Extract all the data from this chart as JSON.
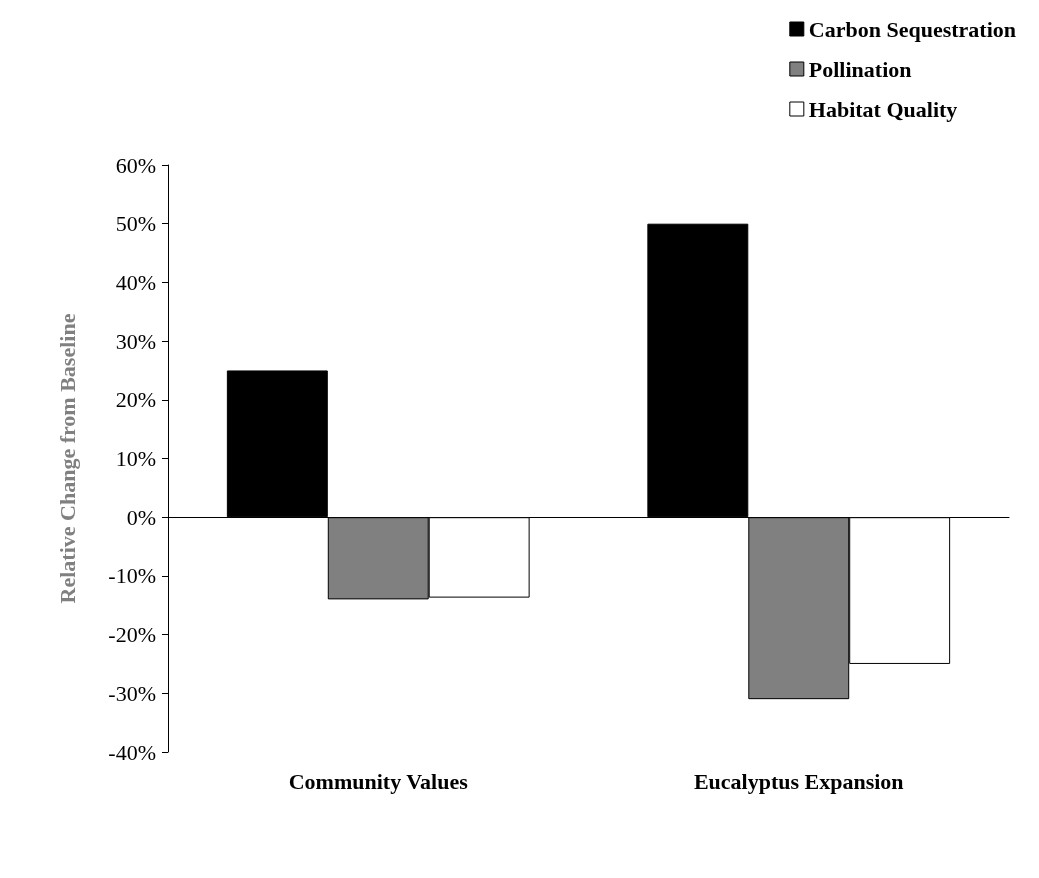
{
  "chart_data": {
    "type": "bar",
    "ylabel": "Relative Change from Baseline",
    "categories": [
      "Community Values",
      "Eucalyptus Expansion"
    ],
    "series": [
      {
        "name": "Carbon Sequestration",
        "color": "#000000",
        "values": [
          25,
          50
        ]
      },
      {
        "name": "Pollination",
        "color": "#808080",
        "values": [
          -14,
          -31
        ]
      },
      {
        "name": "Habitat Quality",
        "color": "#ffffff",
        "values": [
          -13.7,
          -25
        ]
      }
    ],
    "ylim": [
      -40,
      60
    ],
    "yticks": [
      {
        "value": -40,
        "label": "-40%"
      },
      {
        "value": -30,
        "label": "-30%"
      },
      {
        "value": -20,
        "label": "-20%"
      },
      {
        "value": -10,
        "label": "-10%"
      },
      {
        "value": 0,
        "label": "0%"
      },
      {
        "value": 10,
        "label": "10%"
      },
      {
        "value": 20,
        "label": "20%"
      },
      {
        "value": 30,
        "label": "30%"
      },
      {
        "value": 40,
        "label": "40%"
      },
      {
        "value": 50,
        "label": "50%"
      },
      {
        "value": 60,
        "label": "60%"
      }
    ],
    "legend": "top right"
  }
}
